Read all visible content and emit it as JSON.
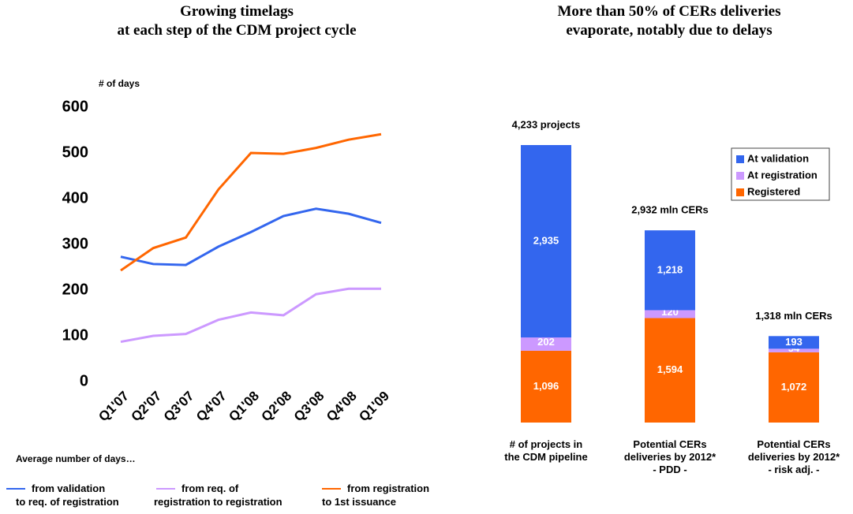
{
  "chart_data": [
    {
      "type": "line",
      "title": "Growing timelags at each step of the CDM project cycle",
      "y_label": "# of days",
      "legend_title": "Average number of days…",
      "categories": [
        "Q1'07",
        "Q2'07",
        "Q3'07",
        "Q4'07",
        "Q1'08",
        "Q2'08",
        "Q3'08",
        "Q4'08",
        "Q1'09"
      ],
      "ylim": [
        0,
        600
      ],
      "yticks": [
        0,
        100,
        200,
        300,
        400,
        500,
        600
      ],
      "series": [
        {
          "name": "from validation to req. of registration",
          "color": "#3366ee",
          "values": [
            273,
            257,
            255,
            295,
            327,
            362,
            378,
            367,
            347
          ]
        },
        {
          "name": "from req. of registration to registration",
          "color": "#cc99ff",
          "values": [
            87,
            100,
            104,
            135,
            151,
            145,
            191,
            203,
            203
          ]
        },
        {
          "name": "from registration to 1st issuance",
          "color": "#ff6600",
          "values": [
            243,
            292,
            315,
            420,
            500,
            498,
            511,
            529,
            541
          ]
        }
      ]
    },
    {
      "type": "stacked-bar",
      "title": "More than 50% of CERs deliveries evaporate, notably due to delays",
      "categories": [
        "# of projects in the CDM pipeline",
        "Potential CERs deliveries by 2012* - PDD -",
        "Potential CERs deliveries by 2012* - risk adj. -"
      ],
      "annotations": [
        "4,233 projects",
        "2,932 mln CERs",
        "1,318 mln CERs"
      ],
      "series": [
        {
          "name": "Registered",
          "color": "#ff6600",
          "values": [
            1096,
            1594,
            1072
          ],
          "value_labels": [
            "1,096",
            "1,594",
            "1,072"
          ]
        },
        {
          "name": "At registration",
          "color": "#cc99ff",
          "values": [
            202,
            120,
            54
          ],
          "value_labels": [
            "202",
            "120",
            "54"
          ]
        },
        {
          "name": "At validation",
          "color": "#3366ee",
          "values": [
            2935,
            1218,
            193
          ],
          "value_labels": [
            "2,935",
            "1,218",
            "193"
          ]
        }
      ]
    }
  ]
}
